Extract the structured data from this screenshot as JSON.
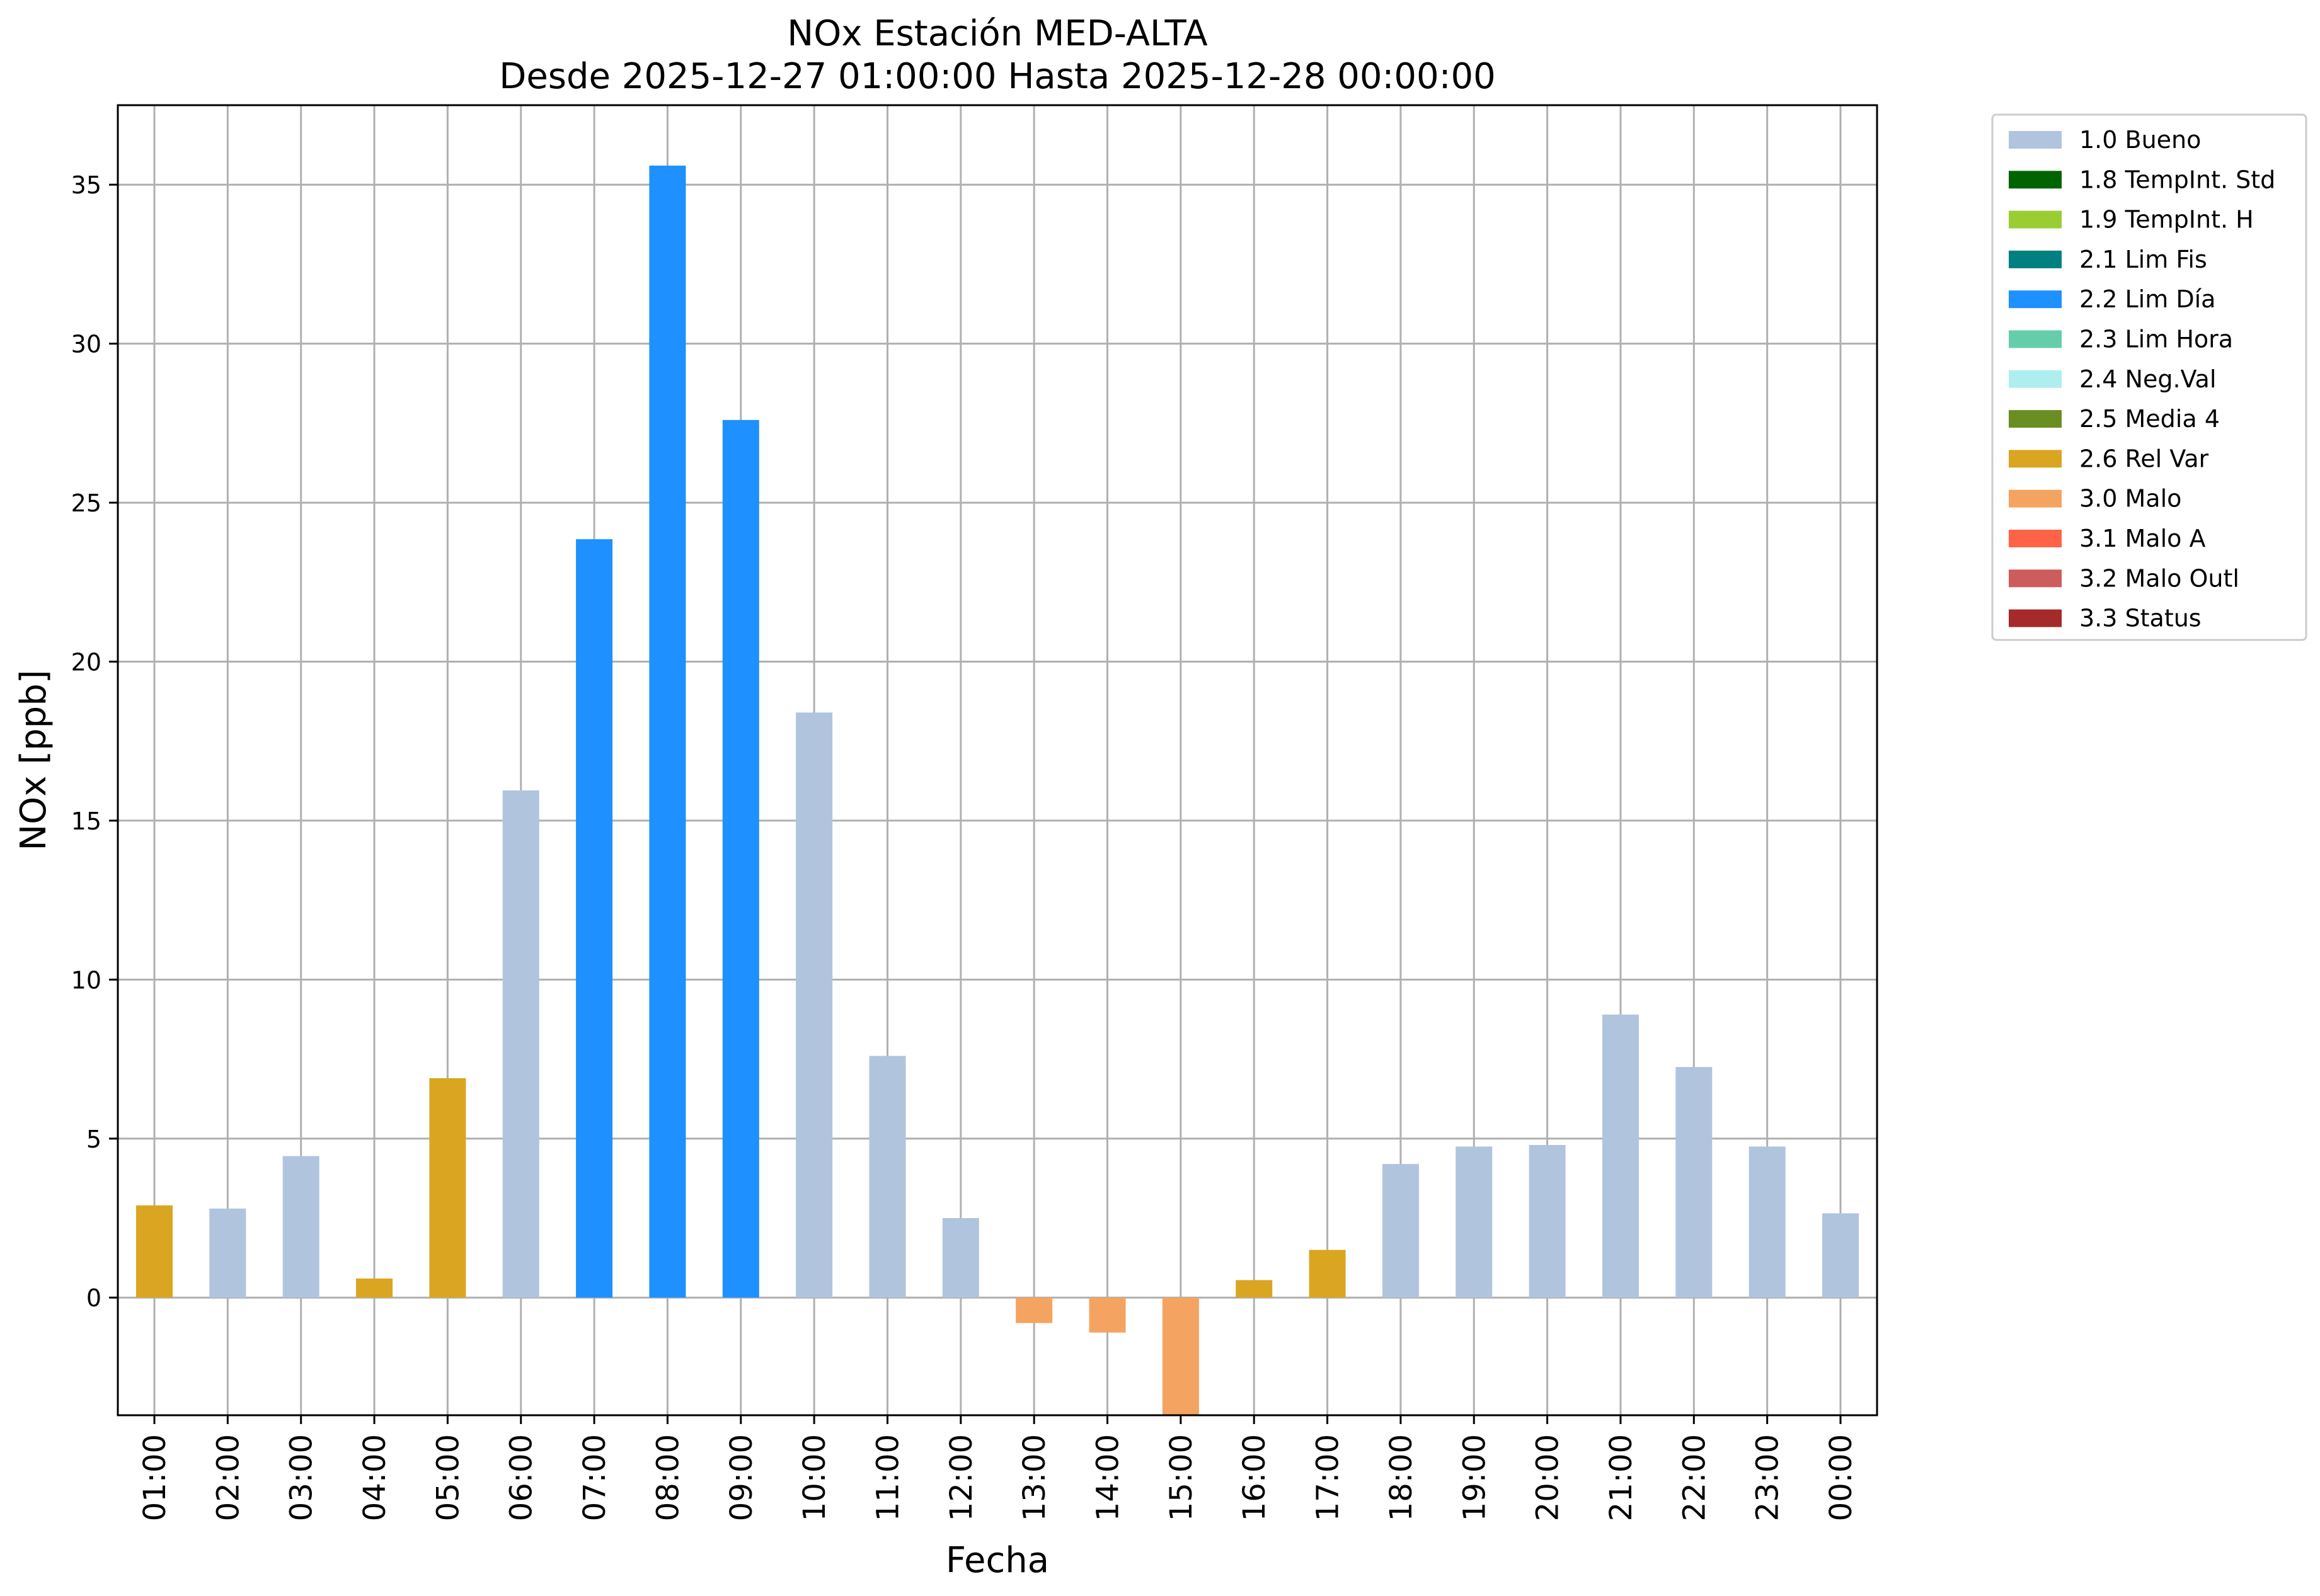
{
  "chart_data": {
    "type": "bar",
    "title": "NOx Estación MED-ALTA",
    "subtitle": "Desde 2025-12-27 01:00:00 Hasta 2025-12-28 00:00:00",
    "xlabel": "Fecha",
    "ylabel": "NOx [ppb]",
    "ylim": [
      -3.7,
      37.5
    ],
    "yticks": [
      "0",
      "5",
      "10",
      "15",
      "20",
      "25",
      "30",
      "35"
    ],
    "grid": true,
    "legend_position": "outside-right-top",
    "categories": [
      "01:00",
      "02:00",
      "03:00",
      "04:00",
      "05:00",
      "06:00",
      "07:00",
      "08:00",
      "09:00",
      "10:00",
      "11:00",
      "12:00",
      "13:00",
      "14:00",
      "15:00",
      "16:00",
      "17:00",
      "18:00",
      "19:00",
      "20:00",
      "21:00",
      "22:00",
      "23:00",
      "00:00"
    ],
    "values": [
      2.9,
      2.8,
      4.45,
      0.6,
      6.9,
      15.95,
      23.85,
      35.6,
      27.6,
      18.4,
      7.6,
      2.5,
      -0.8,
      -1.1,
      -3.7,
      0.55,
      1.5,
      4.2,
      4.75,
      4.8,
      8.9,
      7.25,
      4.75,
      2.65
    ],
    "flags": [
      "2.6 Rel Var",
      "1.0 Bueno",
      "1.0 Bueno",
      "2.6 Rel Var",
      "2.6 Rel Var",
      "1.0 Bueno",
      "2.2 Lim Día",
      "2.2 Lim Día",
      "2.2 Lim Día",
      "1.0 Bueno",
      "1.0 Bueno",
      "1.0 Bueno",
      "3.0 Malo",
      "3.0 Malo",
      "3.0 Malo",
      "2.6 Rel Var",
      "2.6 Rel Var",
      "1.0 Bueno",
      "1.0 Bueno",
      "1.0 Bueno",
      "1.0 Bueno",
      "1.0 Bueno",
      "1.0 Bueno",
      "1.0 Bueno"
    ],
    "legend": [
      {
        "label": "1.0 Bueno",
        "color": "#b0c4de"
      },
      {
        "label": "1.8 TempInt. Std",
        "color": "#006400"
      },
      {
        "label": "1.9 TempInt. H",
        "color": "#9acd32"
      },
      {
        "label": "2.1 Lim Fis",
        "color": "#008080"
      },
      {
        "label": "2.2 Lim Día",
        "color": "#1e90ff"
      },
      {
        "label": "2.3 Lim Hora",
        "color": "#66cdaa"
      },
      {
        "label": "2.4 Neg.Val",
        "color": "#afeeee"
      },
      {
        "label": "2.5 Media 4",
        "color": "#6b8e23"
      },
      {
        "label": "2.6 Rel Var",
        "color": "#daa520"
      },
      {
        "label": "3.0 Malo",
        "color": "#f4a460"
      },
      {
        "label": "3.1 Malo A",
        "color": "#ff6347"
      },
      {
        "label": "3.2 Malo Outl",
        "color": "#cd5c5c"
      },
      {
        "label": "3.3 Status",
        "color": "#a52a2a"
      }
    ]
  }
}
